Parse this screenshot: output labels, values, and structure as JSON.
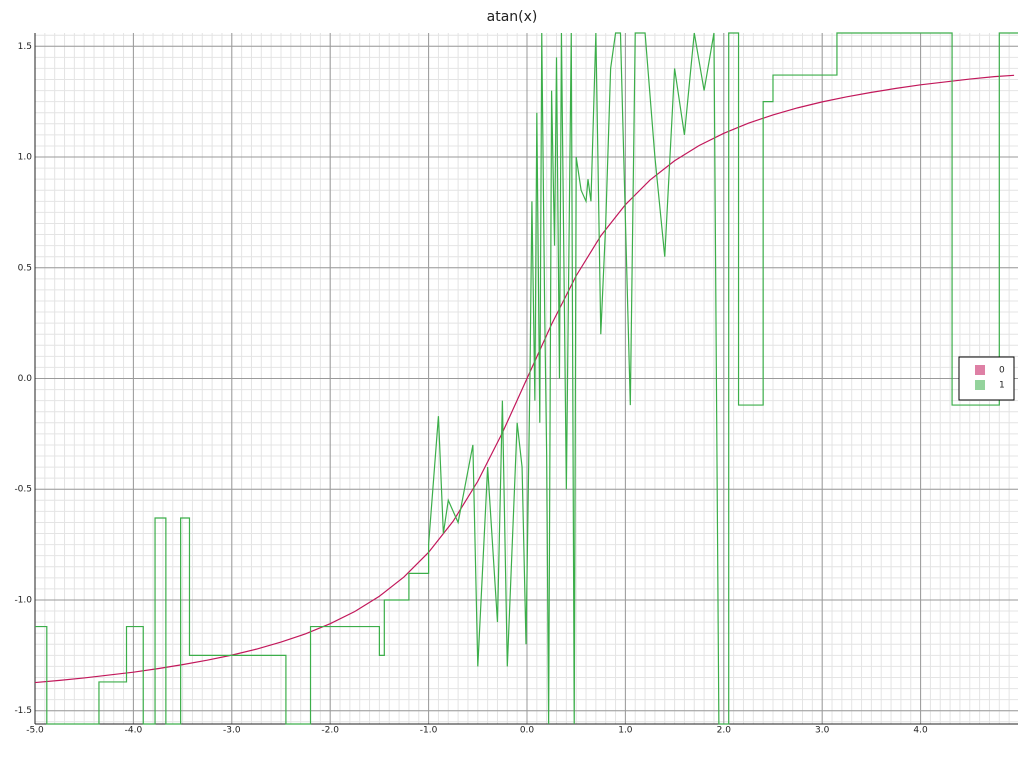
{
  "chart_data": {
    "type": "line",
    "title": "atan(x)",
    "xlim": [
      -5.0,
      4.99
    ],
    "ylim": [
      -1.56,
      1.56
    ],
    "xticks": [
      {
        "value": -5,
        "label": "-5.0"
      },
      {
        "value": -4,
        "label": "-4.0"
      },
      {
        "value": -3,
        "label": "-3.0"
      },
      {
        "value": -2,
        "label": "-2.0"
      },
      {
        "value": -1,
        "label": "-1.0"
      },
      {
        "value": 0,
        "label": "0.0"
      },
      {
        "value": 1,
        "label": "1.0"
      },
      {
        "value": 2,
        "label": "2.0"
      },
      {
        "value": 3,
        "label": "3.0"
      },
      {
        "value": 4,
        "label": "4.0"
      }
    ],
    "yticks": [
      {
        "value": -1.5,
        "label": "-1.5"
      },
      {
        "value": -1,
        "label": "-1.0"
      },
      {
        "value": -0.5,
        "label": "-0.5"
      },
      {
        "value": 0,
        "label": "0.0"
      },
      {
        "value": 0.5,
        "label": "0.5"
      },
      {
        "value": 1,
        "label": "1.0"
      },
      {
        "value": 1.5,
        "label": "1.5"
      }
    ],
    "grid": true,
    "minor_grid": true,
    "legend": "right",
    "series": [
      {
        "name": "0",
        "color": "#c2185b",
        "x": [
          -5,
          -4.75,
          -4.5,
          -4.25,
          -4,
          -3.75,
          -3.5,
          -3.25,
          -3,
          -2.75,
          -2.5,
          -2.25,
          -2,
          -1.75,
          -1.5,
          -1.25,
          -1,
          -0.75,
          -0.5,
          -0.25,
          0,
          0.25,
          0.5,
          0.75,
          1,
          1.25,
          1.5,
          1.75,
          2,
          2.25,
          2.5,
          2.75,
          3,
          3.25,
          3.5,
          3.75,
          4,
          4.25,
          4.5,
          4.75,
          4.95
        ],
        "values": [
          -1.373,
          -1.363,
          -1.352,
          -1.339,
          -1.326,
          -1.31,
          -1.292,
          -1.272,
          -1.249,
          -1.222,
          -1.19,
          -1.153,
          -1.107,
          -1.052,
          -0.983,
          -0.896,
          -0.785,
          -0.644,
          -0.464,
          -0.245,
          0,
          0.245,
          0.464,
          0.644,
          0.785,
          0.896,
          0.983,
          1.052,
          1.107,
          1.153,
          1.19,
          1.222,
          1.249,
          1.272,
          1.292,
          1.31,
          1.326,
          1.339,
          1.352,
          1.363,
          1.369
        ]
      },
      {
        "name": "1",
        "color": "#3cae4a",
        "x": [
          -5,
          -4.88,
          -4.88,
          -4.35,
          -4.35,
          -4.07,
          -4.07,
          -3.9,
          -3.9,
          -3.78,
          -3.78,
          -3.67,
          -3.67,
          -3.52,
          -3.52,
          -3.43,
          -3.43,
          -2.45,
          -2.45,
          -2.2,
          -2.2,
          -1.5,
          -1.5,
          -1.45,
          -1.45,
          -1.2,
          -1.2,
          -1.0,
          -1.0,
          -0.9,
          -0.85,
          -0.8,
          -0.7,
          -0.55,
          -0.5,
          -0.4,
          -0.3,
          -0.25,
          -0.2,
          -0.1,
          -0.05,
          -0.01,
          0.03,
          0.05,
          0.08,
          0.1,
          0.13,
          0.15,
          0.18,
          0.2,
          0.22,
          0.25,
          0.28,
          0.3,
          0.33,
          0.35,
          0.4,
          0.45,
          0.48,
          0.5,
          0.55,
          0.6,
          0.62,
          0.65,
          0.7,
          0.75,
          0.8,
          0.85,
          0.9,
          0.95,
          1.05,
          1.1,
          1.2,
          1.3,
          1.4,
          1.5,
          1.6,
          1.7,
          1.8,
          1.9,
          1.95,
          2.05,
          2.05,
          2.15,
          2.15,
          2.4,
          2.4,
          2.5,
          2.5,
          3.15,
          3.15,
          4.32,
          4.32,
          4.8,
          4.8,
          4.99
        ],
        "values": [
          -1.12,
          -1.12,
          -1.56,
          -1.56,
          -1.37,
          -1.37,
          -1.12,
          -1.12,
          -1.56,
          -1.56,
          -0.63,
          -0.63,
          -1.56,
          -1.56,
          -0.63,
          -0.63,
          -1.25,
          -1.25,
          -1.56,
          -1.56,
          -1.12,
          -1.12,
          -1.25,
          -1.25,
          -1.0,
          -1.0,
          -0.88,
          -0.88,
          -0.75,
          -0.17,
          -0.7,
          -0.55,
          -0.65,
          -0.3,
          -1.3,
          -0.4,
          -1.1,
          -0.1,
          -1.3,
          -0.2,
          -0.4,
          -1.2,
          0.0,
          0.8,
          -0.1,
          1.2,
          -0.2,
          1.56,
          0.3,
          -0.35,
          -1.56,
          1.3,
          0.6,
          1.45,
          0.0,
          1.56,
          -0.5,
          1.56,
          -1.56,
          1.0,
          0.85,
          0.8,
          0.9,
          0.8,
          1.56,
          0.2,
          0.7,
          1.4,
          1.56,
          1.56,
          -0.12,
          1.56,
          1.56,
          1.0,
          0.55,
          1.4,
          1.1,
          1.56,
          1.3,
          1.56,
          -1.56,
          -1.56,
          1.56,
          1.56,
          -0.12,
          -0.12,
          1.25,
          1.25,
          1.37,
          1.37,
          1.56,
          1.56,
          -0.12,
          -0.12,
          1.56,
          1.56
        ]
      }
    ]
  }
}
